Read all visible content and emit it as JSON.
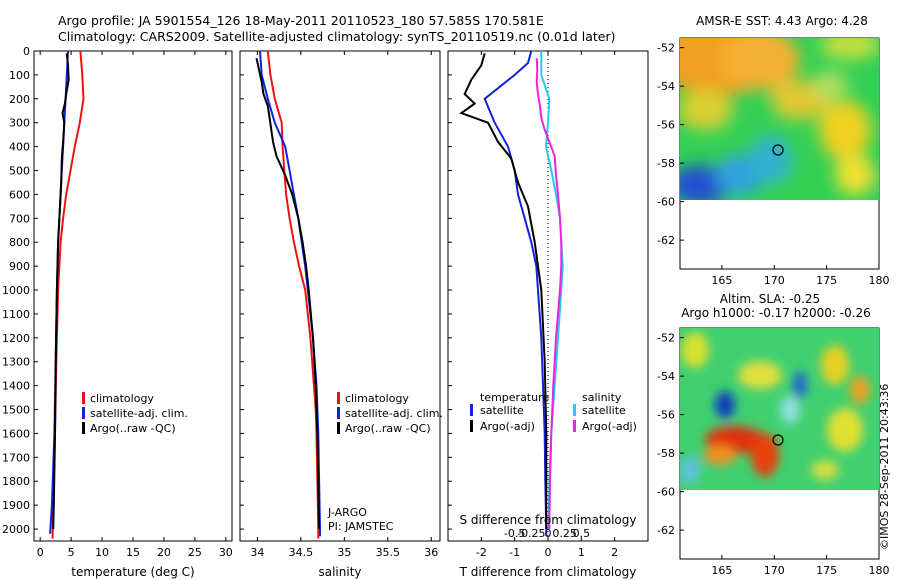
{
  "header": {
    "line1": "Argo profile: JA 5901554_126 18-May-2011 20110523_180 57.585S 170.581E",
    "line2": "Climatology: CARS2009. Satellite-adjusted climatology: synTS_20110519.nc (0.01d later)"
  },
  "stamp": "©IMOS 28-Sep-2011 20:43:36",
  "colors": {
    "climatology": "#ee1111",
    "satellite": "#1122dd",
    "argo": "#000000",
    "sat_t": "#22ccee",
    "argo_s": "#ee22dd"
  },
  "chart_data": [
    {
      "id": "temperature",
      "type": "line",
      "xlabel": "temperature (deg C)",
      "ylabel": "",
      "xlim": [
        -1,
        31
      ],
      "ylim": [
        2050,
        0
      ],
      "xticks": [
        "0",
        "5",
        "10",
        "15",
        "20",
        "25",
        "30"
      ],
      "yticks": [
        "0",
        "100",
        "200",
        "300",
        "400",
        "500",
        "600",
        "700",
        "800",
        "900",
        "1000",
        "1100",
        "1200",
        "1300",
        "1400",
        "1500",
        "1600",
        "1700",
        "1800",
        "1900",
        "2000"
      ],
      "legend": [
        "climatology",
        "satellite-adj. clim.",
        "Argo(..raw -QC)"
      ],
      "series": [
        {
          "name": "climatology",
          "depth": [
            0,
            100,
            200,
            300,
            400,
            500,
            600,
            700,
            800,
            1000,
            1300,
            1600,
            1900,
            2040
          ],
          "values": [
            6.5,
            6.8,
            7.0,
            6.4,
            5.6,
            4.9,
            4.2,
            3.7,
            3.3,
            2.9,
            2.6,
            2.4,
            2.1,
            2.0
          ]
        },
        {
          "name": "satellite-adj. clim.",
          "depth": [
            0,
            100,
            200,
            300,
            400,
            500,
            600,
            700,
            800,
            1000,
            1300,
            1600,
            1900,
            2020
          ],
          "values": [
            4.5,
            4.3,
            4.1,
            3.9,
            3.7,
            3.5,
            3.3,
            3.1,
            2.9,
            2.7,
            2.5,
            2.3,
            1.9,
            1.6
          ]
        },
        {
          "name": "Argo(..raw -QC)",
          "depth": [
            10,
            60,
            120,
            180,
            220,
            260,
            300,
            380,
            450,
            550,
            650,
            800,
            1000,
            1300,
            1600,
            1900,
            2000
          ],
          "values": [
            4.3,
            4.5,
            4.6,
            4.2,
            4.0,
            3.6,
            3.9,
            3.7,
            3.5,
            3.4,
            3.2,
            2.9,
            2.7,
            2.5,
            2.4,
            2.2,
            2.1
          ]
        }
      ]
    },
    {
      "id": "salinity",
      "type": "line",
      "xlabel": "salinity",
      "ylabel": "",
      "xlim": [
        33.8,
        36.1
      ],
      "ylim": [
        2050,
        0
      ],
      "xticks": [
        "34",
        "34.5",
        "35",
        "35.5",
        "36"
      ],
      "legend": [
        "climatology",
        "satellite-adj. clim.",
        "Argo(..raw -QC)"
      ],
      "annotations": [
        "J-ARGO",
        "PI: JAMSTEC"
      ],
      "series": [
        {
          "name": "climatology",
          "depth": [
            0,
            100,
            200,
            300,
            400,
            500,
            600,
            700,
            800,
            900,
            1000,
            1100,
            1200,
            1300,
            1400,
            1500,
            1600,
            1800,
            2000,
            2040
          ],
          "values": [
            34.12,
            34.15,
            34.2,
            34.28,
            34.29,
            34.31,
            34.33,
            34.37,
            34.42,
            34.48,
            34.55,
            34.58,
            34.61,
            34.63,
            34.65,
            34.67,
            34.68,
            34.69,
            34.7,
            34.7
          ]
        },
        {
          "name": "satellite-adj. clim.",
          "depth": [
            0,
            100,
            200,
            300,
            400,
            500,
            600,
            700,
            800,
            900,
            1000,
            1200,
            1400,
            1600,
            1800,
            2000,
            2030
          ],
          "values": [
            34.03,
            34.05,
            34.12,
            34.2,
            34.32,
            34.37,
            34.42,
            34.47,
            34.51,
            34.55,
            34.58,
            34.64,
            34.68,
            34.7,
            34.71,
            34.72,
            34.72
          ]
        },
        {
          "name": "Argo(..raw -QC)",
          "depth": [
            30,
            80,
            130,
            180,
            230,
            280,
            330,
            380,
            440,
            520,
            600,
            700,
            800,
            900,
            1000,
            1200,
            1400,
            1600,
            1800,
            2000
          ],
          "values": [
            33.99,
            34.02,
            34.05,
            34.07,
            34.12,
            34.14,
            34.16,
            34.18,
            34.22,
            34.32,
            34.4,
            34.47,
            34.52,
            34.56,
            34.59,
            34.64,
            34.67,
            34.69,
            34.7,
            34.71
          ]
        }
      ]
    },
    {
      "id": "differences",
      "type": "line",
      "xlabel": "T difference from climatology",
      "title_top": "S difference from climatology",
      "xlim": [
        -3,
        3
      ],
      "ylim": [
        2050,
        0
      ],
      "xticks": [
        "-2",
        "-1",
        "0",
        "1",
        "2"
      ],
      "xticks_top": [
        "-0.5",
        "-0.25",
        "0",
        "0.25",
        "0.5"
      ],
      "legend_groups": [
        {
          "title": "temperature",
          "items": [
            "satellite",
            "Argo(-adj)"
          ]
        },
        {
          "title": "salinity",
          "items": [
            "satellite",
            "Argo(-adj)"
          ]
        }
      ],
      "series": [
        {
          "name": "temperature satellite",
          "depth": [
            0,
            50,
            100,
            200,
            300,
            400,
            500,
            600,
            700,
            800,
            900,
            1000,
            1200,
            1400,
            1600,
            1800,
            2000,
            2030
          ],
          "values": [
            -0.5,
            -0.6,
            -1.0,
            -1.9,
            -1.6,
            -1.2,
            -1.0,
            -0.9,
            -0.7,
            -0.5,
            -0.35,
            -0.3,
            -0.2,
            -0.15,
            -0.1,
            -0.08,
            -0.05,
            -0.05
          ]
        },
        {
          "name": "temperature Argo(-adj)",
          "depth": [
            10,
            60,
            120,
            180,
            220,
            260,
            300,
            380,
            450,
            550,
            650,
            800,
            1000,
            1300,
            1600,
            1900,
            2000
          ],
          "values": [
            -1.9,
            -2.0,
            -2.3,
            -2.5,
            -2.2,
            -2.6,
            -1.8,
            -1.5,
            -1.1,
            -0.9,
            -0.6,
            -0.4,
            -0.2,
            -0.1,
            -0.05,
            -0.05,
            -0.05
          ]
        },
        {
          "name": "salinity satellite",
          "depth": [
            0,
            50,
            100,
            200,
            300,
            400,
            500,
            600,
            700,
            800,
            900,
            1000,
            1200,
            1400,
            1600,
            1800,
            2000
          ],
          "values": [
            -0.1,
            -0.1,
            -0.1,
            0.02,
            0.0,
            -0.03,
            0.05,
            0.12,
            0.18,
            0.2,
            0.22,
            0.2,
            0.15,
            0.1,
            0.05,
            0.02,
            0.01
          ]
        },
        {
          "name": "salinity Argo(-adj)",
          "depth": [
            30,
            80,
            130,
            180,
            230,
            280,
            330,
            380,
            440,
            520,
            600,
            700,
            800,
            900,
            1000,
            1200,
            1400,
            1600,
            1800,
            2000
          ],
          "values": [
            -0.17,
            -0.16,
            -0.17,
            -0.15,
            -0.12,
            -0.1,
            -0.05,
            0.02,
            0.1,
            0.12,
            0.15,
            0.18,
            0.2,
            0.2,
            0.18,
            0.12,
            0.08,
            0.05,
            0.03,
            0.02
          ]
        }
      ]
    },
    {
      "id": "sst_map",
      "type": "heatmap",
      "title": "AMSR-E SST: 4.43 Argo: 4.28",
      "xlim": [
        161,
        180
      ],
      "ylim": [
        -63.5,
        -51.5
      ],
      "xticks": [
        "165",
        "170",
        "175",
        "180"
      ],
      "yticks": [
        "-52",
        "-54",
        "-56",
        "-58",
        "-60",
        "-62"
      ],
      "marker": {
        "lon": 170.581,
        "lat": -57.585
      }
    },
    {
      "id": "sla_map",
      "type": "heatmap",
      "title": "Altim. SLA: -0.25",
      "subtitle": "Argo h1000: -0.17 h2000: -0.26",
      "xlim": [
        161,
        180
      ],
      "ylim": [
        -63.5,
        -51.5
      ],
      "xticks": [
        "165",
        "170",
        "175",
        "180"
      ],
      "yticks": [
        "-52",
        "-54",
        "-56",
        "-58",
        "-60",
        "-62"
      ],
      "marker": {
        "lon": 170.581,
        "lat": -57.585
      }
    }
  ]
}
